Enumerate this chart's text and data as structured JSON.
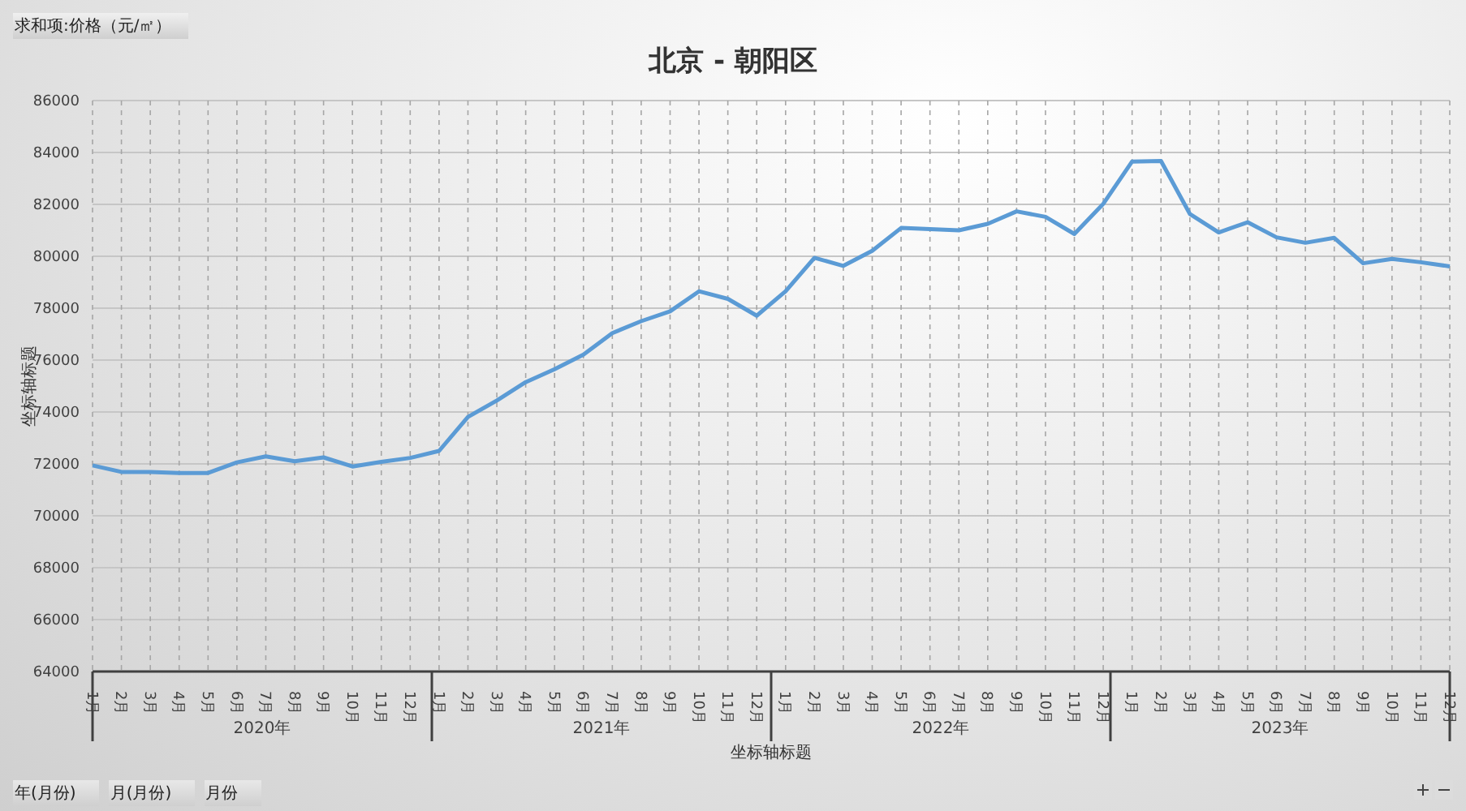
{
  "chart_data": {
    "type": "line",
    "title": "北京 - 朝阳区",
    "xlabel": "坐标轴标题",
    "ylabel": "坐标轴标题",
    "categories": [
      "1月",
      "2月",
      "3月",
      "4月",
      "5月",
      "6月",
      "7月",
      "8月",
      "9月",
      "10月",
      "11月",
      "12月",
      "1月",
      "2月",
      "3月",
      "4月",
      "5月",
      "6月",
      "7月",
      "8月",
      "9月",
      "10月",
      "11月",
      "12月",
      "1月",
      "2月",
      "3月",
      "4月",
      "5月",
      "6月",
      "7月",
      "8月",
      "9月",
      "10月",
      "11月",
      "12月",
      "1月",
      "2月",
      "3月",
      "4月",
      "5月",
      "6月",
      "7月",
      "8月",
      "9月",
      "10月",
      "11月",
      "12月"
    ],
    "series": [
      {
        "color": "#5b9bd5",
        "values": [
          71940,
          71690,
          71690,
          71650,
          71650,
          72060,
          72290,
          72100,
          72250,
          71900,
          72080,
          72230,
          72500,
          73810,
          74440,
          75150,
          75650,
          76210,
          77040,
          77500,
          77880,
          78650,
          78360,
          77710,
          78650,
          79940,
          79630,
          80210,
          81090,
          81050,
          81000,
          81250,
          81730,
          81520,
          80860,
          82020,
          83650,
          83670,
          81630,
          80920,
          81310,
          80730,
          80520,
          80710,
          79730,
          79900,
          79770,
          79610
        ]
      }
    ],
    "ylim": [
      64000,
      86000
    ],
    "yticks": [
      64000,
      66000,
      68000,
      70000,
      72000,
      74000,
      76000,
      78000,
      80000,
      82000,
      84000,
      86000
    ],
    "grid": true,
    "legend": false,
    "marker": "none",
    "line_style": "solid",
    "annotations": [
      "2020年",
      "2021年",
      "2022年",
      "2023年",
      "求和项:价格（元/㎡）",
      "年(月份)",
      "月(月份)",
      "月份"
    ]
  }
}
